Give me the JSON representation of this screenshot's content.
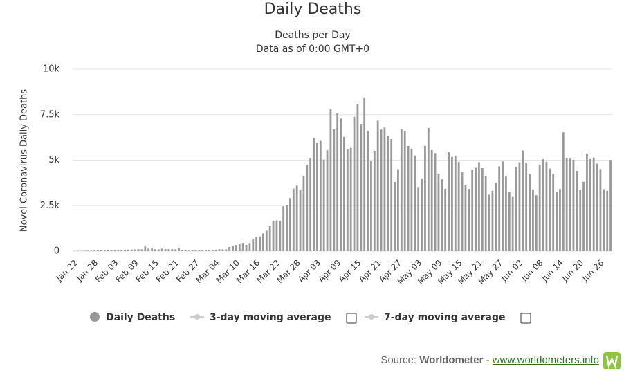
{
  "chart_data": {
    "type": "bar",
    "title": "Daily Deaths",
    "subtitle": [
      "Deaths per Day",
      "Data as of 0:00 GMT+0"
    ],
    "y_label": "Novel Coronavirus Daily Deaths",
    "ylim": [
      0,
      10000
    ],
    "yticks": [
      {
        "value": 0,
        "label": "0"
      },
      {
        "value": 2500,
        "label": "2.5k"
      },
      {
        "value": 5000,
        "label": "5k"
      },
      {
        "value": 7500,
        "label": "7.5k"
      },
      {
        "value": 10000,
        "label": "10k"
      }
    ],
    "grid": true,
    "categories": [
      "Jan 22",
      null,
      null,
      null,
      null,
      null,
      "Jan 28",
      null,
      null,
      null,
      null,
      null,
      "Feb 03",
      null,
      null,
      null,
      null,
      null,
      "Feb 09",
      null,
      null,
      null,
      null,
      null,
      "Feb 15",
      null,
      null,
      null,
      null,
      null,
      "Feb 21",
      null,
      null,
      null,
      null,
      null,
      "Feb 27",
      null,
      null,
      null,
      null,
      null,
      "Mar 04",
      null,
      null,
      null,
      null,
      null,
      "Mar 10",
      null,
      null,
      null,
      null,
      null,
      "Mar 16",
      null,
      null,
      null,
      null,
      null,
      "Mar 22",
      null,
      null,
      null,
      null,
      null,
      "Mar 28",
      null,
      null,
      null,
      null,
      null,
      "Apr 03",
      null,
      null,
      null,
      null,
      null,
      "Apr 09",
      null,
      null,
      null,
      null,
      null,
      "Apr 15",
      null,
      null,
      null,
      null,
      null,
      "Apr 21",
      null,
      null,
      null,
      null,
      null,
      "Apr 27",
      null,
      null,
      null,
      null,
      null,
      "May 03",
      null,
      null,
      null,
      null,
      null,
      "May 09",
      null,
      null,
      null,
      null,
      null,
      "May 15",
      null,
      null,
      null,
      null,
      null,
      "May 21",
      null,
      null,
      null,
      null,
      null,
      "May 27",
      null,
      null,
      null,
      null,
      null,
      "Jun 02",
      null,
      null,
      null,
      null,
      null,
      "Jun 08",
      null,
      null,
      null,
      null,
      null,
      "Jun 14",
      null,
      null,
      null,
      null,
      null,
      "Jun 20",
      null,
      null,
      null,
      null,
      null,
      "Jun 26",
      null,
      null,
      null
    ],
    "series": [
      {
        "name": "Daily Deaths",
        "color": "#999999",
        "values": [
          8,
          16,
          15,
          24,
          26,
          26,
          38,
          43,
          46,
          45,
          46,
          57,
          64,
          66,
          73,
          73,
          86,
          89,
          97,
          108,
          97,
          254,
          143,
          143,
          106,
          98,
          136,
          115,
          118,
          109,
          97,
          150,
          71,
          52,
          29,
          44,
          37,
          35,
          58,
          67,
          72,
          84,
          80,
          105,
          101,
          103,
          229,
          270,
          330,
          397,
          453,
          342,
          441,
          643,
          770,
          808,
          970,
          1126,
          1383,
          1653,
          1693,
          1650,
          2466,
          2521,
          2917,
          3432,
          3600,
          3341,
          4126,
          4756,
          5134,
          6205,
          5940,
          6063,
          5034,
          5547,
          7793,
          6698,
          7575,
          7292,
          6280,
          5617,
          5674,
          7387,
          8096,
          6990,
          8405,
          6602,
          4942,
          5517,
          7173,
          6682,
          6795,
          6336,
          6161,
          3800,
          4499,
          6710,
          6605,
          5784,
          5637,
          5257,
          3484,
          3998,
          5787,
          6775,
          5551,
          5387,
          4224,
          3945,
          3425,
          5446,
          5181,
          5254,
          4903,
          4330,
          3614,
          3415,
          4488,
          4581,
          4889,
          4562,
          4108,
          3099,
          3317,
          3769,
          4661,
          4929,
          4098,
          3238,
          2983,
          4612,
          4882,
          5533,
          4865,
          4229,
          3391,
          3076,
          4714,
          5050,
          4915,
          4538,
          4242,
          3249,
          3412,
          6532,
          5123,
          5090,
          5028,
          4409,
          3362,
          3810,
          5362,
          5059,
          5140,
          4810,
          4512,
          3405,
          3317,
          5012
        ]
      }
    ],
    "inactive_legend": [
      "3-day moving average",
      "7-day moving average"
    ],
    "source": {
      "prefix": "Source:",
      "name": "Worldometer",
      "separator": "-",
      "link": "www.worldometers.info"
    }
  }
}
